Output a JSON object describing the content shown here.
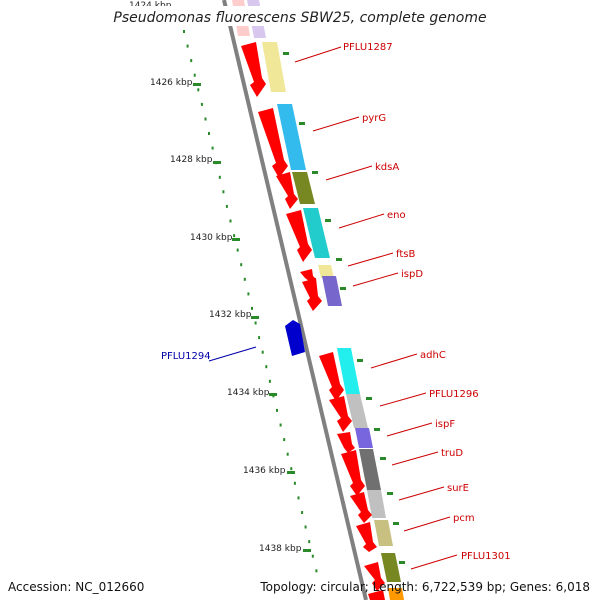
{
  "title": "Pseudomonas fluorescens SBW25, complete genome",
  "accession_text": "Accession: NC_012660",
  "topology_text": "Topology: circular; Length: 6,722,539 bp; Genes: 6,018",
  "ticks": [
    "1424 kbp",
    "1426 kbp",
    "1428 kbp",
    "1430 kbp",
    "1432 kbp",
    "1434 kbp",
    "1436 kbp",
    "1438 kbp"
  ],
  "colors": {
    "forward_cds": "#ff0000",
    "reverse_cds": "#0000cc",
    "forward_label": "#cc0000",
    "reverse_label": "#0000aa",
    "tick": "#2a8a2a",
    "backbone": "#808080"
  },
  "genes": [
    {
      "name": "PFLU1287",
      "strand": "+"
    },
    {
      "name": "pyrG",
      "strand": "+"
    },
    {
      "name": "kdsA",
      "strand": "+"
    },
    {
      "name": "eno",
      "strand": "+"
    },
    {
      "name": "ftsB",
      "strand": "+"
    },
    {
      "name": "ispD",
      "strand": "+"
    },
    {
      "name": "PFLU1294",
      "strand": "-"
    },
    {
      "name": "adhC",
      "strand": "+"
    },
    {
      "name": "PFLU1296",
      "strand": "+"
    },
    {
      "name": "ispF",
      "strand": "+"
    },
    {
      "name": "truD",
      "strand": "+"
    },
    {
      "name": "surE",
      "strand": "+"
    },
    {
      "name": "pcm",
      "strand": "+"
    },
    {
      "name": "PFLU1301",
      "strand": "+"
    }
  ],
  "cog_bands": [
    "#d8c8f0",
    "#f0e898",
    "#33bbee",
    "#778822",
    "#22cccc",
    "#f0e898",
    "#7766cc",
    "#22eeee",
    "#c0c0c0",
    "#7766dd",
    "#707070",
    "#c0c0c0",
    "#c8c080",
    "#778822",
    "#ff9900"
  ]
}
